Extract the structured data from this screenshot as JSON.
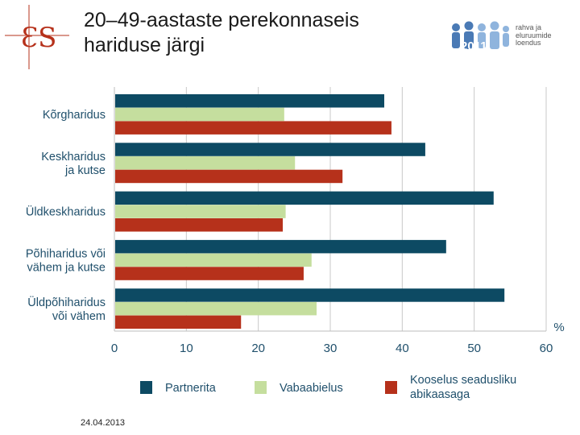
{
  "header": {
    "title_line1": "20–49-aastaste perekonnaseis",
    "title_line2": "hariduse järgi",
    "logo_left_icon": "es-monogram-logo",
    "logo_right_text": "rahva ja\neluruumide\nloendus",
    "logo_right_icon": "census-people-logo"
  },
  "footer": {
    "date": "24.04.2013"
  },
  "chart_data": {
    "type": "bar",
    "orientation": "horizontal",
    "categories": [
      "Kõrgharidus",
      "Keskharidus\nja kutse",
      "Üldkeskharidus",
      "Põhiharidus või\nvähem ja kutse",
      "Üldpõhiharidus\nvõi vähem"
    ],
    "series": [
      {
        "name": "Partnerita",
        "color": "#0d4a63",
        "values": [
          37.5,
          43.2,
          52.7,
          46.1,
          54.2
        ]
      },
      {
        "name": "Vabaabielus",
        "color": "#c5de9e",
        "values": [
          23.6,
          25.1,
          23.8,
          27.4,
          28.1
        ]
      },
      {
        "name": "Kooselus seadusliku abikaasaga",
        "color": "#b6311b",
        "values": [
          38.5,
          31.7,
          23.4,
          26.3,
          17.6
        ]
      }
    ],
    "xlim": [
      0,
      60
    ],
    "xticks": [
      0,
      10,
      20,
      30,
      40,
      50,
      60
    ],
    "xlabel": "%",
    "grid": true,
    "legend_position": "bottom"
  }
}
